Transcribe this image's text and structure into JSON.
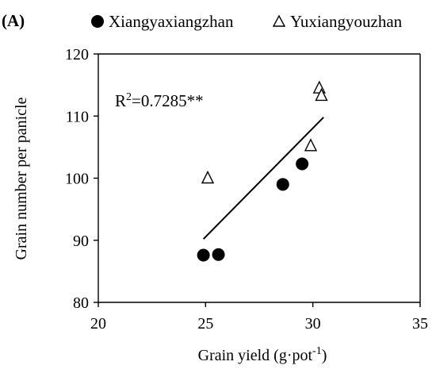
{
  "panel_label": "(A)",
  "chart_data": {
    "type": "scatter",
    "xlabel_main": "Grain yield (g·pot",
    "xlabel_sup": "-1",
    "xlabel_close": ")",
    "ylabel": "Grain number per panicle",
    "xlim": [
      20,
      35
    ],
    "ylim": [
      80,
      120
    ],
    "x_ticks": [
      "20",
      "25",
      "30",
      "35"
    ],
    "y_ticks": [
      "80",
      "90",
      "100",
      "110",
      "120"
    ],
    "grid": false,
    "legend_position": "top",
    "series": [
      {
        "name": "Xiangyaxiangzhan",
        "marker": "filled-circle",
        "x": [
          24.9,
          25.6,
          28.6,
          29.5
        ],
        "y": [
          87.6,
          87.7,
          99.0,
          102.3
        ]
      },
      {
        "name": "Yuxiangyouzhan",
        "marker": "open-triangle",
        "x": [
          25.1,
          29.9,
          30.3,
          30.4
        ],
        "y": [
          100.0,
          105.2,
          114.5,
          113.3
        ]
      }
    ],
    "trendline": {
      "x": [
        24.9,
        30.5
      ],
      "y": [
        90.2,
        109.8
      ]
    },
    "annotation_prefix": "R",
    "annotation_sup": "2",
    "annotation_value": "=0.7285**",
    "colors": {
      "marker": "#000000",
      "line": "#000000"
    }
  }
}
